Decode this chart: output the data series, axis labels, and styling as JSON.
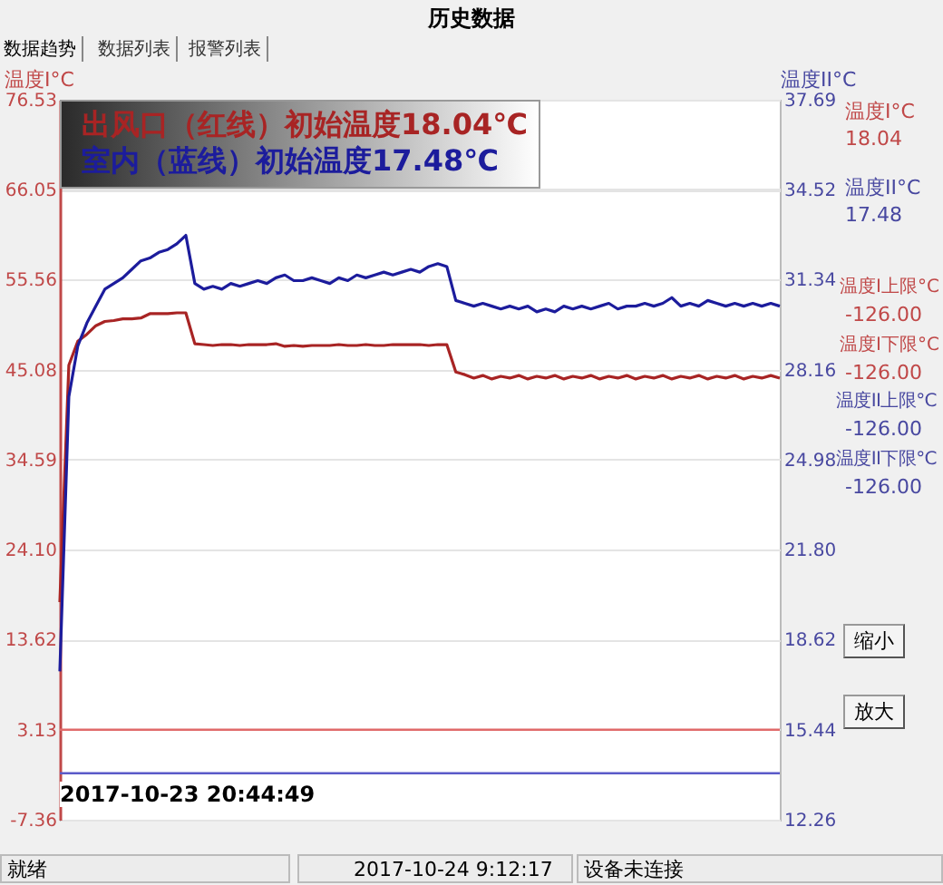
{
  "chart_data": {
    "type": "line",
    "title": "历史数据",
    "ylabel": "温度I°C",
    "y2label": "温度II°C",
    "categories": [
      null,
      null,
      null,
      null,
      null,
      null,
      null,
      null,
      null,
      null,
      null,
      null,
      null,
      null,
      null,
      null,
      null,
      null,
      null,
      null,
      null,
      null,
      null,
      null,
      null,
      null,
      null,
      null,
      null,
      null,
      null,
      null,
      null,
      null,
      null,
      null,
      null,
      null,
      null,
      null,
      null,
      null,
      null,
      null,
      null,
      null,
      null,
      null,
      null,
      null,
      null,
      null,
      null,
      null,
      null,
      null,
      null,
      null,
      null,
      null,
      null,
      null,
      null,
      null,
      null,
      null,
      null,
      null,
      null,
      null,
      null,
      null,
      null,
      null,
      null,
      null,
      null,
      null,
      null,
      null,
      null
    ],
    "series": [
      {
        "name": "出风口（红线）初始温度18.04℃",
        "color": "#a82424",
        "values": [
          18.0,
          45.6,
          48.4,
          49.2,
          50.2,
          50.7,
          50.8,
          51.0,
          51.0,
          51.1,
          51.6,
          51.6,
          51.6,
          51.7,
          51.7,
          48.1,
          48.0,
          47.9,
          48.0,
          48.0,
          47.9,
          48.0,
          48.0,
          48.0,
          48.1,
          47.8,
          47.9,
          47.8,
          47.9,
          47.9,
          47.9,
          48.0,
          47.9,
          47.9,
          48.0,
          47.9,
          47.9,
          48.0,
          48.0,
          48.0,
          48.0,
          47.9,
          48.0,
          48.0,
          44.8,
          44.5,
          44.1,
          44.4,
          44.0,
          44.3,
          44.1,
          44.4,
          44.0,
          44.3,
          44.1,
          44.4,
          44.0,
          44.3,
          44.1,
          44.4,
          44.0,
          44.3,
          44.1,
          44.4,
          44.0,
          44.3,
          44.1,
          44.4,
          44.0,
          44.3,
          44.1,
          44.4,
          44.0,
          44.3,
          44.1,
          44.4,
          44.0,
          44.3,
          44.1,
          44.4,
          44.1
        ]
      },
      {
        "name": "室内（蓝线）初始温度17.48℃",
        "color": "#1c1c9c",
        "axis": "y2",
        "values": [
          17.5,
          27.2,
          29.0,
          29.8,
          30.4,
          31.0,
          31.2,
          31.4,
          31.7,
          32.0,
          32.1,
          32.3,
          32.4,
          32.6,
          32.9,
          31.2,
          31.0,
          31.1,
          31.0,
          31.2,
          31.1,
          31.2,
          31.3,
          31.2,
          31.4,
          31.5,
          31.3,
          31.3,
          31.4,
          31.3,
          31.2,
          31.4,
          31.3,
          31.5,
          31.4,
          31.5,
          31.6,
          31.5,
          31.6,
          31.7,
          31.6,
          31.8,
          31.9,
          31.8,
          30.6,
          30.5,
          30.4,
          30.5,
          30.4,
          30.3,
          30.4,
          30.3,
          30.4,
          30.2,
          30.3,
          30.2,
          30.4,
          30.3,
          30.4,
          30.3,
          30.4,
          30.5,
          30.3,
          30.4,
          30.4,
          30.5,
          30.4,
          30.5,
          30.7,
          30.4,
          30.5,
          30.4,
          30.6,
          30.5,
          30.4,
          30.5,
          30.4,
          30.5,
          30.4,
          30.5,
          30.4
        ]
      }
    ],
    "ylim": [
      -7.36,
      76.53
    ],
    "yticks": [
      -7.36,
      3.13,
      13.62,
      {
        "value": 24.1,
        "label": "24.10"
      },
      34.59,
      45.08,
      55.56,
      66.05,
      76.53
    ],
    "y2lim": [
      12.26,
      37.69
    ],
    "y2ticks": [
      12.26,
      15.44,
      18.62,
      {
        "value": 21.8,
        "label": "21.80"
      },
      24.98,
      28.16,
      31.34,
      34.52,
      37.69
    ],
    "ref_lines": [
      {
        "axis": "y",
        "value": 3.13,
        "color": "#e06a6a"
      },
      {
        "axis": "y2",
        "value": 13.9,
        "color": "#5a5ac8"
      }
    ],
    "grid": true,
    "legend": "top left",
    "annotations": [
      "数据趋势",
      "数据列表",
      "报警列表",
      "温度I°C",
      "18.04",
      "温度II°C",
      "17.48",
      "温度I上限°C",
      "-126.00",
      "温度I下限°C",
      "-126.00",
      "温度II上限°C",
      "-126.00",
      "温度II下限°C",
      "-126.00",
      "缩小",
      "放大",
      "2017-10-23 20:44:49",
      "就绪",
      "2017-10-24 9:12:17",
      "设备未连接"
    ]
  }
}
